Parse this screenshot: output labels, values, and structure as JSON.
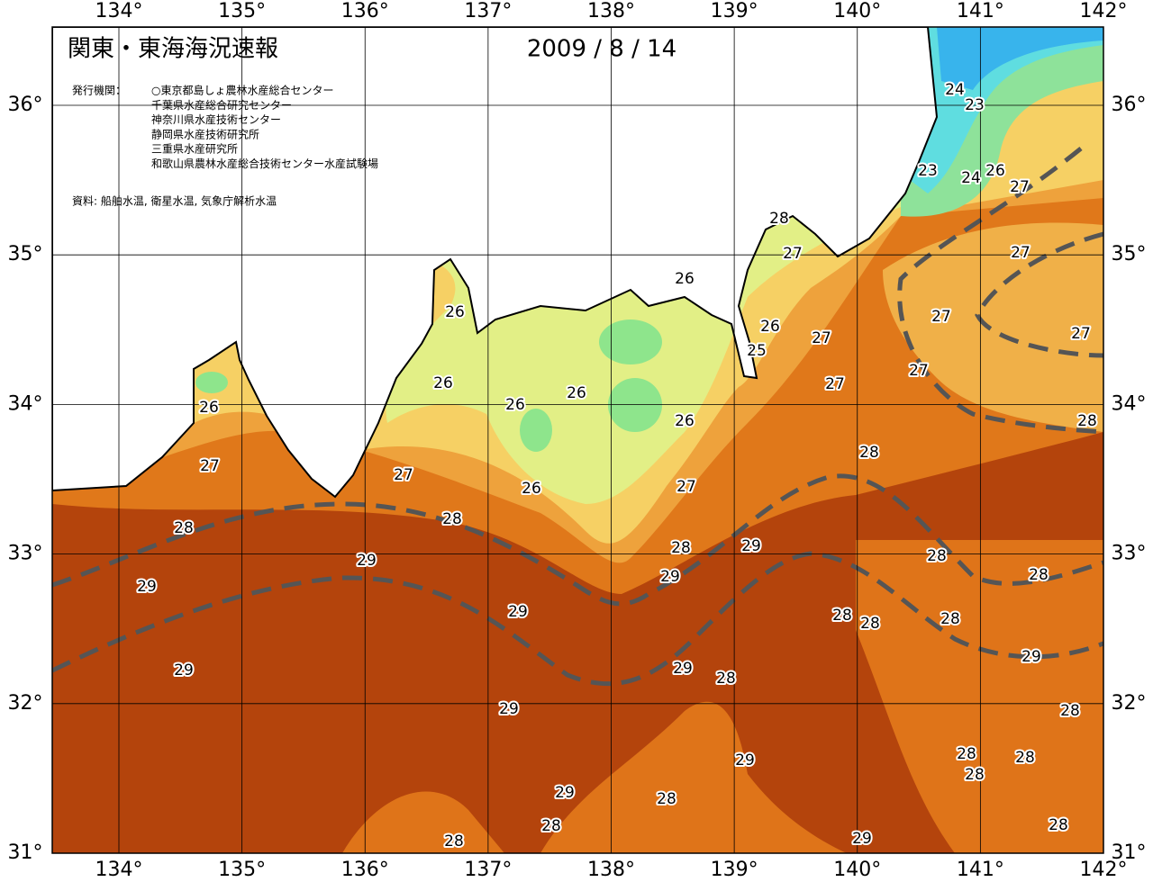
{
  "map": {
    "title": "関東・東海海況速報",
    "date": "2009 / 8 / 14",
    "issuer_label": "発行機関：",
    "issuers": [
      "○東京都島しょ農林水産総合センター",
      "千葉県水産総合研究センター",
      "神奈川県水産技術センター",
      "静岡県水産技術研究所",
      "三重県水産研究所",
      "和歌山県農林水産総合技術センター水産試験場"
    ],
    "source": "資料: 船舶水温, 衛星水温, 気象庁解析水温",
    "lon_ticks": [
      {
        "value": 134,
        "label": "134°"
      },
      {
        "value": 135,
        "label": "135°"
      },
      {
        "value": 136,
        "label": "136°"
      },
      {
        "value": 137,
        "label": "137°"
      },
      {
        "value": 138,
        "label": "138°"
      },
      {
        "value": 139,
        "label": "139°"
      },
      {
        "value": 140,
        "label": "140°"
      },
      {
        "value": 141,
        "label": "141°"
      },
      {
        "value": 142,
        "label": "142°"
      }
    ],
    "lat_ticks": [
      {
        "value": 36,
        "label": "36°"
      },
      {
        "value": 35,
        "label": "35°"
      },
      {
        "value": 34,
        "label": "34°"
      },
      {
        "value": 33,
        "label": "33°"
      },
      {
        "value": 32,
        "label": "32°"
      },
      {
        "value": 31,
        "label": "31°"
      }
    ],
    "contour_labels": [
      24,
      23,
      23,
      24,
      26,
      27,
      28,
      27,
      27,
      26,
      26,
      27,
      26,
      27,
      25,
      27,
      27,
      26,
      27,
      26,
      26,
      26,
      26,
      28,
      28,
      27,
      27,
      27,
      26,
      28,
      28,
      28,
      29,
      29,
      28,
      28,
      29,
      29,
      29,
      28,
      28,
      28,
      29,
      29,
      29,
      28,
      29,
      28,
      28,
      28,
      29,
      28,
      29,
      28,
      28,
      28,
      28,
      29
    ]
  }
}
